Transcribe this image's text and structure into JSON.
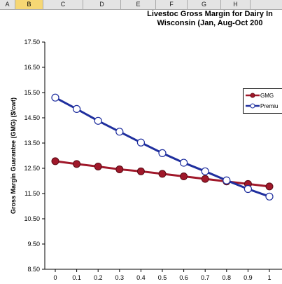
{
  "spreadsheet": {
    "columns": [
      "A",
      "B",
      "C",
      "D",
      "E",
      "F",
      "G",
      "H"
    ],
    "active_column": "B"
  },
  "chart_data": {
    "type": "line",
    "title": [
      "Livestoc Gross Margin for Dairy In",
      "Wisconsin (Jan, Aug-Oct 200"
    ],
    "ylabel": "Gross Margin Guarantee (GMG) ($/cwt)",
    "xlabel": "",
    "x": [
      0,
      0.1,
      0.2,
      0.3,
      0.4,
      0.5,
      0.6,
      0.7,
      0.8,
      0.9,
      1
    ],
    "x_tick_labels": [
      "0",
      "0.1",
      "0.2",
      "0.3",
      "0.4",
      "0.5",
      "0.6",
      "0.7",
      "0.8",
      "0.9",
      "1"
    ],
    "ylim": [
      8.5,
      17.5
    ],
    "y_ticks": [
      8.5,
      9.5,
      10.5,
      11.5,
      12.5,
      13.5,
      14.5,
      15.5,
      16.5,
      17.5
    ],
    "y_tick_labels": [
      "8.50",
      "9.50",
      "10.50",
      "11.50",
      "12.50",
      "13.50",
      "14.50",
      "15.50",
      "16.50",
      "17.50"
    ],
    "series": [
      {
        "name": "GMG",
        "color": "#a0182a",
        "marker": "filled-circle",
        "values": [
          12.78,
          12.67,
          12.57,
          12.46,
          12.38,
          12.28,
          12.18,
          12.08,
          11.98,
          11.88,
          11.78
        ]
      },
      {
        "name": "Premiu",
        "color": "#1f2f9e",
        "marker": "open-circle",
        "values": [
          15.3,
          14.85,
          14.38,
          13.95,
          13.52,
          13.1,
          12.72,
          12.38,
          12.02,
          11.68,
          11.38
        ]
      }
    ],
    "legend_position": "right",
    "grid": false
  }
}
